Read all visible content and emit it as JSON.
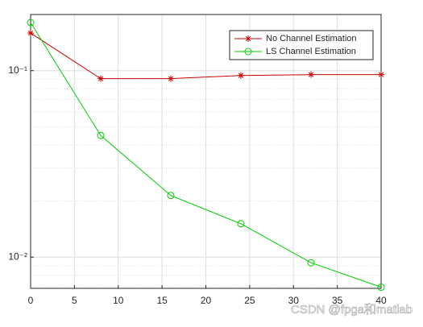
{
  "chart_data": {
    "type": "line",
    "x": [
      0,
      8,
      16,
      24,
      32,
      40
    ],
    "series": [
      {
        "name": "No Channel Estimation",
        "color": "#cc0000",
        "marker": "asterisk",
        "values": [
          0.159,
          0.0906,
          0.0906,
          0.0942,
          0.0952,
          0.0952
        ]
      },
      {
        "name": "LS Channel Estimation",
        "color": "#00cc00",
        "marker": "circle",
        "values": [
          0.181,
          0.0449,
          0.0214,
          0.0151,
          0.00933,
          0.0069
        ]
      }
    ],
    "xlim": [
      0,
      40
    ],
    "xticks": [
      0,
      5,
      10,
      15,
      20,
      25,
      30,
      35,
      40
    ],
    "ylim": [
      0.0068,
      0.2
    ],
    "yscale": "log",
    "yticks": [
      {
        "value": 0.01,
        "label": "10⁻²"
      },
      {
        "value": 0.1,
        "label": "10⁻¹"
      }
    ],
    "grid": true,
    "minor_grid": true,
    "legend": "northeast",
    "watermark": "CSDN @fpga和matlab"
  }
}
